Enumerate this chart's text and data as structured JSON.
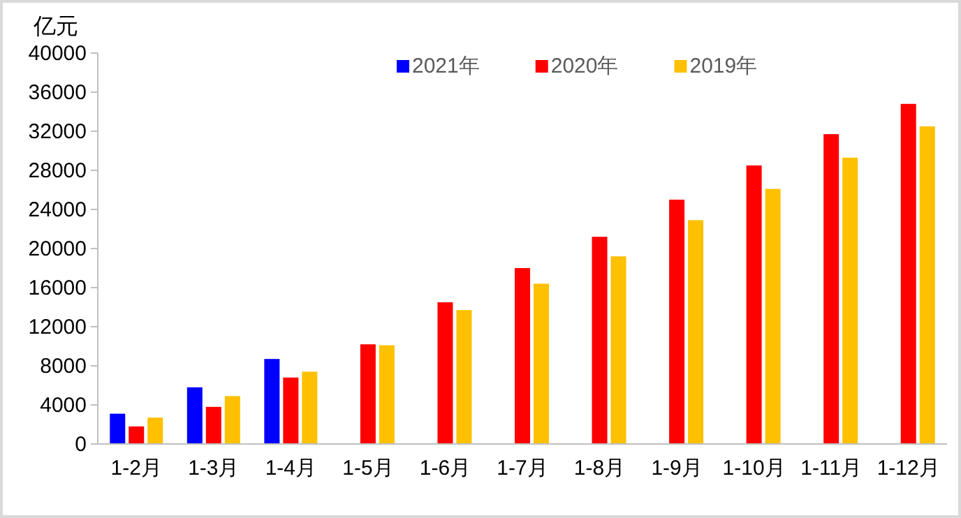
{
  "chart_data": {
    "type": "bar",
    "ylabel": "亿元",
    "categories": [
      "1-2月",
      "1-3月",
      "1-4月",
      "1-5月",
      "1-6月",
      "1-7月",
      "1-8月",
      "1-9月",
      "1-10月",
      "1-11月",
      "1-12月"
    ],
    "series": [
      {
        "name": "2021年",
        "color": "#0000ff",
        "values": [
          3100,
          5800,
          8700,
          null,
          null,
          null,
          null,
          null,
          null,
          null,
          null
        ]
      },
      {
        "name": "2020年",
        "color": "#ff0000",
        "values": [
          1800,
          3800,
          6800,
          10200,
          14500,
          18000,
          21200,
          25000,
          28500,
          31700,
          34800
        ]
      },
      {
        "name": "2019年",
        "color": "#ffc000",
        "values": [
          2700,
          4900,
          7400,
          10100,
          13700,
          16400,
          19200,
          22900,
          26100,
          29300,
          32500
        ]
      }
    ],
    "ylim": [
      0,
      40000
    ],
    "yticks": [
      0,
      4000,
      8000,
      12000,
      16000,
      20000,
      24000,
      28000,
      32000,
      36000,
      40000
    ],
    "grid": false,
    "legend": "top"
  }
}
